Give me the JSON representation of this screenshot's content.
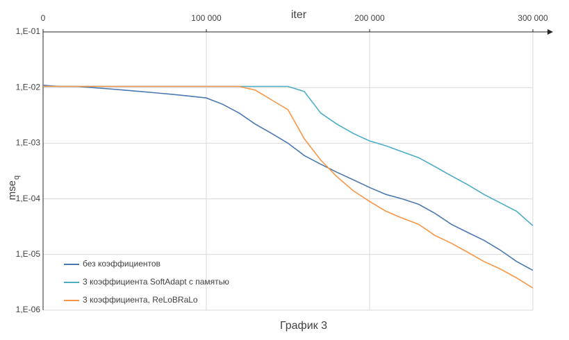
{
  "chart_data": {
    "type": "line",
    "title": "График 3",
    "xlabel": "iter",
    "ylabel": "mse",
    "ylabel_sub": "q",
    "log_y": true,
    "grid": true,
    "legend": "bottom-left",
    "x": [
      0,
      10000,
      20000,
      30000,
      40000,
      50000,
      60000,
      70000,
      80000,
      90000,
      100000,
      110000,
      120000,
      130000,
      140000,
      150000,
      160000,
      170000,
      180000,
      190000,
      200000,
      210000,
      220000,
      230000,
      240000,
      250000,
      260000,
      270000,
      280000,
      290000,
      300000
    ],
    "xlim": [
      0,
      300000
    ],
    "xticks": [
      0,
      {
        "value": 100000,
        "label": "100 000"
      },
      {
        "value": 200000,
        "label": "200 000"
      },
      {
        "value": 300000,
        "label": "300 000"
      }
    ],
    "ylim": [
      1e-06,
      0.1
    ],
    "yticks": [
      {
        "value": 0.1,
        "label": "1,E-01"
      },
      {
        "value": 0.01,
        "label": "1,E-02"
      },
      {
        "value": 0.001,
        "label": "1,E-03"
      },
      {
        "value": 0.0001,
        "label": "1,E-04"
      },
      {
        "value": 1e-05,
        "label": "1,E-05"
      },
      {
        "value": 1e-06,
        "label": "1,E-06"
      }
    ],
    "series": [
      {
        "name": "без коэффициентов",
        "color": "#4a78b0",
        "values": [
          0.011,
          0.0105,
          0.0105,
          0.01,
          0.0095,
          0.009,
          0.0085,
          0.008,
          0.0075,
          0.007,
          0.0065,
          0.005,
          0.0035,
          0.0022,
          0.0015,
          0.001,
          0.0006,
          0.00042,
          0.0003,
          0.00022,
          0.00016,
          0.00012,
          0.0001,
          8e-05,
          5.5e-05,
          3.5e-05,
          2.5e-05,
          1.8e-05,
          1.2e-05,
          7.5e-06,
          5.2e-06
        ]
      },
      {
        "name": "3 коэффициента SoftAdapt с памятью",
        "color": "#4bacc6",
        "values": [
          0.0105,
          0.0105,
          0.0105,
          0.0105,
          0.0105,
          0.0105,
          0.0105,
          0.0105,
          0.0105,
          0.0105,
          0.0105,
          0.0105,
          0.0105,
          0.0105,
          0.0105,
          0.0105,
          0.0085,
          0.0035,
          0.0022,
          0.0015,
          0.0011,
          0.0009,
          0.0007,
          0.00055,
          0.00038,
          0.00026,
          0.00018,
          0.00012,
          8.5e-05,
          6e-05,
          3.3e-05
        ]
      },
      {
        "name": "3 коэффициента, ReLoBRaLo",
        "color": "#f79646",
        "values": [
          0.0105,
          0.0105,
          0.0105,
          0.0105,
          0.0105,
          0.0105,
          0.0105,
          0.0105,
          0.0105,
          0.0105,
          0.0105,
          0.0105,
          0.0105,
          0.009,
          0.006,
          0.004,
          0.0012,
          0.0005,
          0.00025,
          0.00014,
          9e-05,
          6e-05,
          4.5e-05,
          3.5e-05,
          2.2e-05,
          1.6e-05,
          1.1e-05,
          7.5e-06,
          5.5e-06,
          3.8e-06,
          2.5e-06
        ]
      }
    ]
  }
}
